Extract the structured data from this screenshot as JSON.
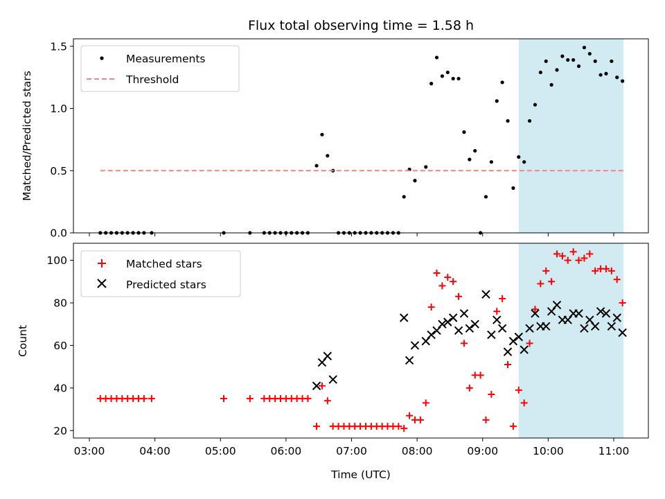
{
  "chart_data": {
    "type": "scatter",
    "title": "Flux total observing time = 1.58 h",
    "xlabel": "Time (UTC)",
    "x_ticks": [
      "03:00",
      "04:00",
      "05:00",
      "06:00",
      "07:00",
      "08:00",
      "09:00",
      "10:00",
      "11:00"
    ],
    "shaded_interval": {
      "start": "09:33",
      "end": "11:09",
      "color": "#add8e6"
    },
    "panels": [
      {
        "id": "ratio",
        "ylabel": "Matched/Predicted stars",
        "ylim": [
          0,
          1.56
        ],
        "y_ticks": [
          "0.0",
          "0.5",
          "1.0",
          "1.5"
        ],
        "legend_position": "upper-left",
        "series": [
          {
            "name": "Measurements",
            "marker": "dot",
            "color": "#000000",
            "points": [
              [
                "03:10",
                0
              ],
              [
                "03:15",
                0
              ],
              [
                "03:20",
                0
              ],
              [
                "03:25",
                0
              ],
              [
                "03:30",
                0
              ],
              [
                "03:35",
                0
              ],
              [
                "03:40",
                0
              ],
              [
                "03:45",
                0
              ],
              [
                "03:50",
                0
              ],
              [
                "03:57",
                0
              ],
              [
                "05:03",
                0
              ],
              [
                "05:27",
                0
              ],
              [
                "05:40",
                0
              ],
              [
                "05:45",
                0
              ],
              [
                "05:50",
                0
              ],
              [
                "05:55",
                0
              ],
              [
                "06:00",
                0
              ],
              [
                "06:05",
                0
              ],
              [
                "06:10",
                0
              ],
              [
                "06:15",
                0
              ],
              [
                "06:20",
                0
              ],
              [
                "06:28",
                0.54
              ],
              [
                "06:33",
                0.79
              ],
              [
                "06:38",
                0.62
              ],
              [
                "06:43",
                0.5
              ],
              [
                "06:48",
                0
              ],
              [
                "06:53",
                0
              ],
              [
                "06:58",
                0
              ],
              [
                "07:03",
                0
              ],
              [
                "07:08",
                0
              ],
              [
                "07:13",
                0
              ],
              [
                "07:18",
                0
              ],
              [
                "07:23",
                0
              ],
              [
                "07:28",
                0
              ],
              [
                "07:33",
                0
              ],
              [
                "07:38",
                0
              ],
              [
                "07:43",
                0
              ],
              [
                "07:48",
                0.29
              ],
              [
                "07:53",
                0.51
              ],
              [
                "07:58",
                0.42
              ],
              [
                "08:08",
                0.53
              ],
              [
                "08:13",
                1.2
              ],
              [
                "08:18",
                1.41
              ],
              [
                "08:23",
                1.26
              ],
              [
                "08:28",
                1.29
              ],
              [
                "08:33",
                1.24
              ],
              [
                "08:38",
                1.24
              ],
              [
                "08:43",
                0.81
              ],
              [
                "08:48",
                0.59
              ],
              [
                "08:53",
                0.66
              ],
              [
                "08:58",
                0
              ],
              [
                "09:03",
                0.29
              ],
              [
                "09:08",
                0.57
              ],
              [
                "09:13",
                1.06
              ],
              [
                "09:18",
                1.21
              ],
              [
                "09:23",
                0.9
              ],
              [
                "09:28",
                0.36
              ],
              [
                "09:33",
                0.61
              ],
              [
                "09:38",
                0.57
              ],
              [
                "09:43",
                0.9
              ],
              [
                "09:48",
                1.03
              ],
              [
                "09:53",
                1.29
              ],
              [
                "09:58",
                1.38
              ],
              [
                "10:03",
                1.19
              ],
              [
                "10:08",
                1.31
              ],
              [
                "10:13",
                1.42
              ],
              [
                "10:18",
                1.39
              ],
              [
                "10:23",
                1.39
              ],
              [
                "10:28",
                1.34
              ],
              [
                "10:33",
                1.49
              ],
              [
                "10:38",
                1.44
              ],
              [
                "10:43",
                1.38
              ],
              [
                "10:48",
                1.27
              ],
              [
                "10:53",
                1.28
              ],
              [
                "10:58",
                1.38
              ],
              [
                "11:03",
                1.25
              ],
              [
                "11:08",
                1.22
              ]
            ]
          },
          {
            "name": "Threshold",
            "type": "line",
            "style": "dashed",
            "color": "#ff8080",
            "x_start": "03:10",
            "x_end": "11:09",
            "value": 0.5
          }
        ]
      },
      {
        "id": "count",
        "ylabel": "Count",
        "ylim": [
          16.5,
          108
        ],
        "y_ticks": [
          "20",
          "40",
          "60",
          "80",
          "100"
        ],
        "legend_position": "upper-left",
        "series": [
          {
            "name": "Matched stars",
            "marker": "plus",
            "color": "#ff0000",
            "points": [
              [
                "03:10",
                35
              ],
              [
                "03:15",
                35
              ],
              [
                "03:20",
                35
              ],
              [
                "03:25",
                35
              ],
              [
                "03:30",
                35
              ],
              [
                "03:35",
                35
              ],
              [
                "03:40",
                35
              ],
              [
                "03:45",
                35
              ],
              [
                "03:50",
                35
              ],
              [
                "03:57",
                35
              ],
              [
                "05:03",
                35
              ],
              [
                "05:27",
                35
              ],
              [
                "05:40",
                35
              ],
              [
                "05:45",
                35
              ],
              [
                "05:50",
                35
              ],
              [
                "05:55",
                35
              ],
              [
                "06:00",
                35
              ],
              [
                "06:05",
                35
              ],
              [
                "06:10",
                35
              ],
              [
                "06:15",
                35
              ],
              [
                "06:20",
                35
              ],
              [
                "06:28",
                22
              ],
              [
                "06:33",
                41
              ],
              [
                "06:38",
                34
              ],
              [
                "06:43",
                22
              ],
              [
                "06:48",
                22
              ],
              [
                "06:53",
                22
              ],
              [
                "06:58",
                22
              ],
              [
                "07:03",
                22
              ],
              [
                "07:08",
                22
              ],
              [
                "07:13",
                22
              ],
              [
                "07:18",
                22
              ],
              [
                "07:23",
                22
              ],
              [
                "07:28",
                22
              ],
              [
                "07:33",
                22
              ],
              [
                "07:38",
                22
              ],
              [
                "07:43",
                22
              ],
              [
                "07:48",
                21
              ],
              [
                "07:53",
                27
              ],
              [
                "07:58",
                25
              ],
              [
                "08:03",
                25
              ],
              [
                "08:08",
                33
              ],
              [
                "08:13",
                78
              ],
              [
                "08:18",
                94
              ],
              [
                "08:23",
                88
              ],
              [
                "08:28",
                92
              ],
              [
                "08:33",
                90
              ],
              [
                "08:38",
                83
              ],
              [
                "08:43",
                61
              ],
              [
                "08:48",
                40
              ],
              [
                "08:53",
                46
              ],
              [
                "08:58",
                46
              ],
              [
                "09:03",
                25
              ],
              [
                "09:08",
                37
              ],
              [
                "09:13",
                76
              ],
              [
                "09:18",
                82
              ],
              [
                "09:23",
                51
              ],
              [
                "09:28",
                22
              ],
              [
                "09:33",
                39
              ],
              [
                "09:38",
                33
              ],
              [
                "09:43",
                61
              ],
              [
                "09:48",
                77
              ],
              [
                "09:53",
                89
              ],
              [
                "09:58",
                95
              ],
              [
                "10:03",
                90
              ],
              [
                "10:08",
                103
              ],
              [
                "10:13",
                102
              ],
              [
                "10:18",
                100
              ],
              [
                "10:23",
                104
              ],
              [
                "10:28",
                100
              ],
              [
                "10:33",
                101
              ],
              [
                "10:38",
                103
              ],
              [
                "10:43",
                95
              ],
              [
                "10:48",
                96
              ],
              [
                "10:53",
                96
              ],
              [
                "10:58",
                95
              ],
              [
                "11:03",
                91
              ],
              [
                "11:08",
                80
              ]
            ]
          },
          {
            "name": "Predicted stars",
            "marker": "x",
            "color": "#000000",
            "points": [
              [
                "06:28",
                41
              ],
              [
                "06:33",
                52
              ],
              [
                "06:38",
                55
              ],
              [
                "06:43",
                44
              ],
              [
                "07:48",
                73
              ],
              [
                "07:53",
                53
              ],
              [
                "07:58",
                60
              ],
              [
                "08:08",
                62
              ],
              [
                "08:13",
                65
              ],
              [
                "08:18",
                67
              ],
              [
                "08:23",
                70
              ],
              [
                "08:28",
                71
              ],
              [
                "08:33",
                73
              ],
              [
                "08:38",
                67
              ],
              [
                "08:43",
                75
              ],
              [
                "08:48",
                68
              ],
              [
                "08:53",
                70
              ],
              [
                "09:03",
                84
              ],
              [
                "09:08",
                65
              ],
              [
                "09:13",
                72
              ],
              [
                "09:18",
                68
              ],
              [
                "09:23",
                57
              ],
              [
                "09:28",
                62
              ],
              [
                "09:33",
                64
              ],
              [
                "09:38",
                58
              ],
              [
                "09:43",
                68
              ],
              [
                "09:48",
                75
              ],
              [
                "09:53",
                69
              ],
              [
                "09:58",
                69
              ],
              [
                "10:03",
                76
              ],
              [
                "10:08",
                79
              ],
              [
                "10:13",
                72
              ],
              [
                "10:18",
                72
              ],
              [
                "10:23",
                75
              ],
              [
                "10:28",
                75
              ],
              [
                "10:33",
                68
              ],
              [
                "10:38",
                72
              ],
              [
                "10:43",
                69
              ],
              [
                "10:48",
                76
              ],
              [
                "10:53",
                75
              ],
              [
                "10:58",
                69
              ],
              [
                "11:03",
                73
              ],
              [
                "11:08",
                66
              ]
            ]
          }
        ]
      }
    ]
  }
}
